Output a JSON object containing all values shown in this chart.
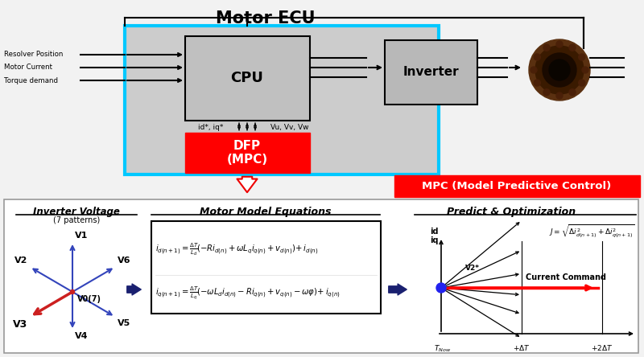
{
  "title": "Motor ECU",
  "bg_color": "#f2f2f2",
  "white": "#ffffff",
  "black": "#000000",
  "red": "#ff0000",
  "cyan_border": "#00c8ff",
  "light_gray": "#d0d0d0",
  "mpc_label": "MPC (Model Predictive Control)",
  "cpu_label": "CPU",
  "dfp_label": "DFP\n(MPC)",
  "inverter_label": "Inverter",
  "input_labels": [
    "Resolver Position",
    "Motor Current",
    "Torque demand"
  ],
  "inv_volt_title": "Inverter Voltage",
  "inv_volt_sub": "(7 patterns)",
  "motor_model_title": "Motor Model Equations",
  "predict_title": "Predict & Optimization",
  "current_cmd": "Current Command",
  "v_labels": [
    "V1",
    "V2",
    "V3",
    "V4",
    "V5",
    "V6",
    "V0(7)"
  ]
}
